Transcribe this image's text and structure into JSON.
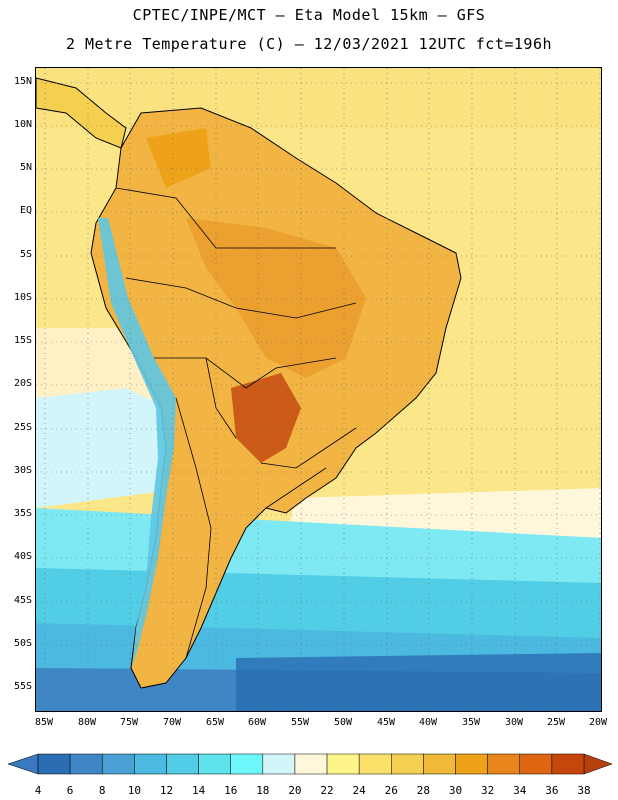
{
  "title": {
    "line1": "CPTEC/INPE/MCT –  Eta Model 15km – GFS",
    "line2": "2 Metre Temperature (C) – 12/03/2021 12UTC fct=196h"
  },
  "map": {
    "lat_labels": [
      "15N",
      "10N",
      "5N",
      "EQ",
      "5S",
      "10S",
      "15S",
      "20S",
      "25S",
      "30S",
      "35S",
      "40S",
      "45S",
      "50S",
      "55S"
    ],
    "lon_labels": [
      "85W",
      "80W",
      "75W",
      "70W",
      "65W",
      "60W",
      "55W",
      "50W",
      "45W",
      "40W",
      "35W",
      "30W",
      "25W",
      "20W"
    ]
  },
  "legend": {
    "labels": [
      "4",
      "6",
      "8",
      "10",
      "12",
      "14",
      "16",
      "18",
      "20",
      "22",
      "24",
      "26",
      "28",
      "30",
      "32",
      "34",
      "36",
      "38"
    ],
    "colors": [
      "#2a6db3",
      "#3f86c4",
      "#4aa1d3",
      "#4cb9e0",
      "#52cde6",
      "#5ee3ec",
      "#6ff8fa",
      "#d2f5fa",
      "#fff7dc",
      "#fdf58a",
      "#fbe36b",
      "#f5cf4f",
      "#f0b93a",
      "#eea21a",
      "#e8861c",
      "#de6512",
      "#c6470b"
    ],
    "low_color": "#3a78bf",
    "high_color": "#b5410f"
  }
}
